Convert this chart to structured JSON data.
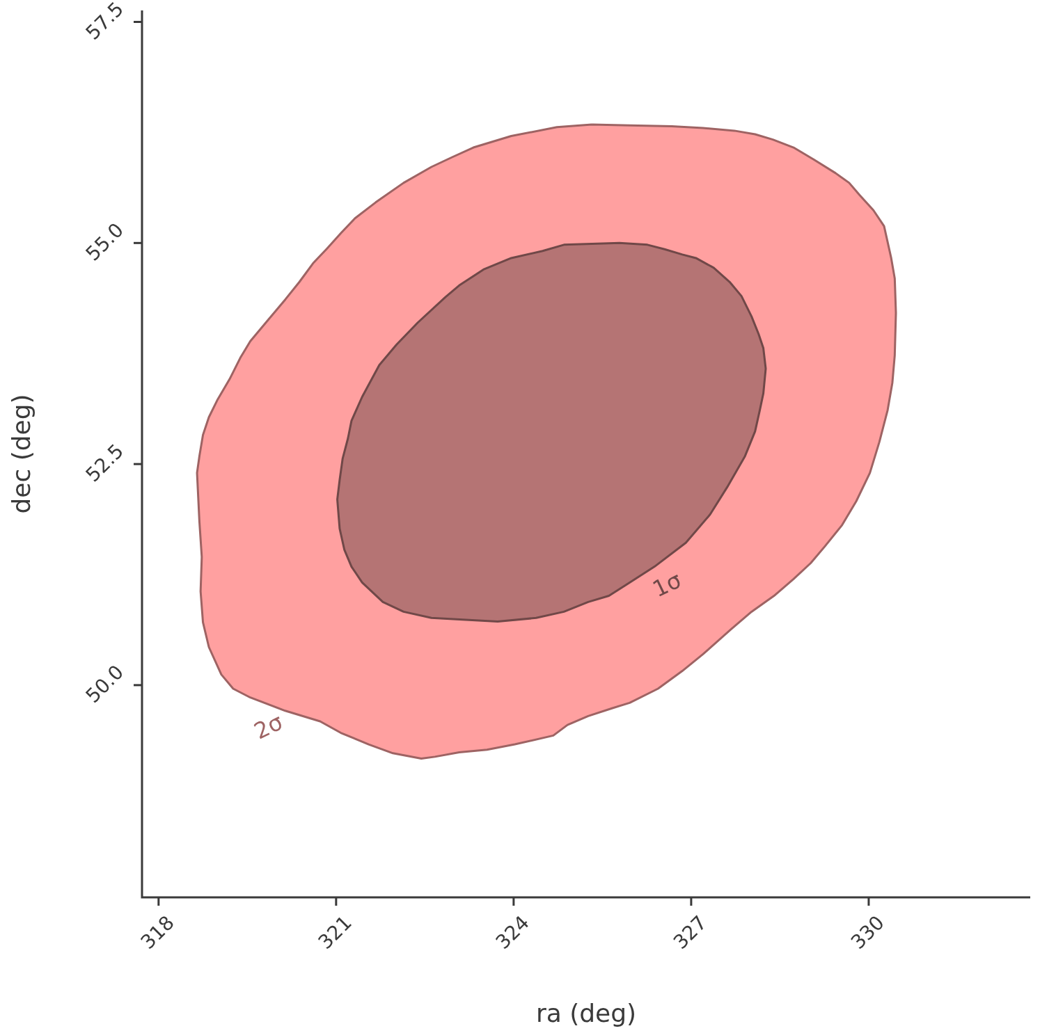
{
  "chart_data": {
    "type": "area",
    "xlabel": "ra (deg)",
    "ylabel": "dec (deg)",
    "xlim": [
      317.72,
      332.73
    ],
    "ylim": [
      47.6,
      57.63
    ],
    "xticks": [
      318,
      321,
      324,
      327,
      330
    ],
    "yticks": [
      {
        "value": 50,
        "label": "50.0"
      },
      {
        "value": 52.5,
        "label": "52.5"
      },
      {
        "value": 55,
        "label": "55.0"
      },
      {
        "value": 57.5,
        "label": "57.5"
      }
    ],
    "grid": false,
    "legend": false,
    "marker": "none",
    "line_style": "solid",
    "series": [
      {
        "name": "2σ",
        "color": "#ffa0a0",
        "x": [
          325.32,
          325.96,
          326.67,
          327.2,
          327.73,
          328.08,
          328.38,
          328.73,
          329.08,
          329.44,
          329.67,
          329.85,
          330.08,
          330.26,
          330.38,
          330.44,
          330.46,
          330.44,
          330.4,
          330.32,
          330.18,
          330.02,
          329.79,
          329.55,
          329.26,
          329.02,
          328.73,
          328.4,
          328.02,
          327.67,
          327.2,
          326.85,
          326.44,
          325.96,
          325.67,
          325.26,
          324.91,
          324.67,
          324.02,
          323.55,
          323.08,
          322.67,
          322.44,
          321.96,
          321.55,
          321.08,
          320.73,
          320.14,
          319.55,
          319.26,
          319.06,
          318.85,
          318.75,
          318.71,
          318.73,
          318.69,
          318.65,
          318.69,
          318.75,
          318.85,
          318.99,
          319.2,
          319.38,
          319.55,
          319.85,
          320.14,
          320.38,
          320.61,
          320.85,
          321.08,
          321.32,
          321.67,
          322.14,
          322.61,
          322.96,
          323.32,
          323.96,
          324.73,
          325.32
        ],
        "values": [
          56.34,
          56.33,
          56.32,
          56.3,
          56.27,
          56.23,
          56.17,
          56.08,
          55.94,
          55.79,
          55.68,
          55.54,
          55.37,
          55.19,
          54.83,
          54.6,
          54.21,
          53.73,
          53.42,
          53.11,
          52.75,
          52.4,
          52.08,
          51.81,
          51.57,
          51.38,
          51.2,
          51.01,
          50.83,
          50.63,
          50.35,
          50.16,
          49.96,
          49.8,
          49.74,
          49.65,
          49.55,
          49.43,
          49.33,
          49.27,
          49.24,
          49.19,
          49.17,
          49.23,
          49.33,
          49.46,
          49.59,
          49.71,
          49.86,
          49.96,
          50.12,
          50.43,
          50.71,
          51.06,
          51.45,
          51.85,
          52.4,
          52.59,
          52.83,
          53.03,
          53.22,
          53.46,
          53.7,
          53.89,
          54.13,
          54.36,
          54.56,
          54.77,
          54.94,
          55.11,
          55.28,
          55.46,
          55.68,
          55.86,
          55.97,
          56.08,
          56.21,
          56.31,
          56.34
        ]
      },
      {
        "name": "1σ",
        "color": "#b57474",
        "x": [
          325.32,
          325.79,
          326.26,
          326.55,
          326.85,
          327.08,
          327.38,
          327.65,
          327.85,
          328.02,
          328.14,
          328.22,
          328.26,
          328.22,
          328.16,
          328.08,
          327.91,
          327.61,
          327.32,
          326.91,
          326.38,
          325.96,
          325.61,
          325.26,
          324.85,
          324.38,
          323.73,
          323.14,
          322.61,
          322.14,
          321.79,
          321.44,
          321.26,
          321.14,
          321.06,
          321.02,
          321.06,
          321.11,
          321.2,
          321.26,
          321.44,
          321.73,
          322.02,
          322.38,
          322.85,
          323.08,
          323.49,
          323.96,
          324.49,
          324.85,
          325.32
        ],
        "values": [
          54.99,
          55.0,
          54.98,
          54.93,
          54.87,
          54.83,
          54.72,
          54.56,
          54.4,
          54.17,
          53.97,
          53.81,
          53.58,
          53.3,
          53.11,
          52.87,
          52.59,
          52.24,
          51.93,
          51.61,
          51.34,
          51.16,
          51.01,
          50.94,
          50.83,
          50.76,
          50.72,
          50.74,
          50.76,
          50.83,
          50.94,
          51.16,
          51.34,
          51.53,
          51.77,
          52.1,
          52.32,
          52.56,
          52.79,
          52.99,
          53.26,
          53.62,
          53.85,
          54.1,
          54.39,
          54.52,
          54.7,
          54.83,
          54.91,
          54.98,
          54.99
        ]
      }
    ]
  }
}
